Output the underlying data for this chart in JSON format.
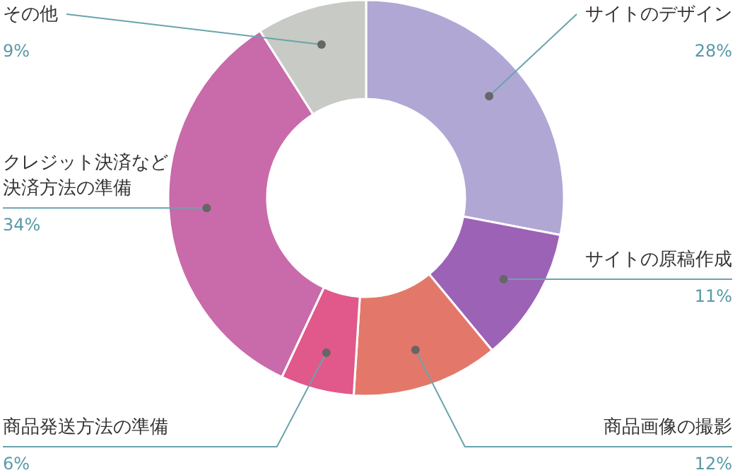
{
  "chart_data": {
    "type": "donut",
    "categories": [
      "サイトのデザイン",
      "サイトの原稿作成",
      "商品画像の撮影",
      "商品発送方法の準備",
      "クレジット決済など決済方法の準備",
      "その他"
    ],
    "values": [
      28,
      11,
      12,
      6,
      34,
      9
    ],
    "colors": [
      "#b1a7d4",
      "#9c62b6",
      "#e3786a",
      "#e0598a",
      "#c96aaa",
      "#c7cac5"
    ],
    "value_labels": [
      "28%",
      "11%",
      "12%",
      "6%",
      "34%",
      "9%"
    ]
  }
}
